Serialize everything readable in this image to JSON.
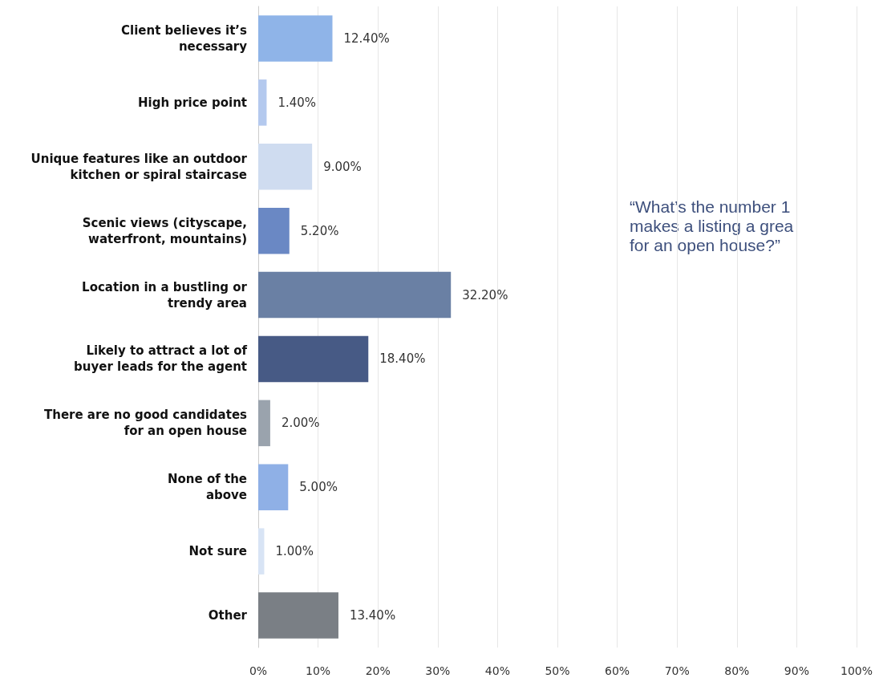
{
  "chart_data": {
    "type": "bar",
    "orientation": "horizontal",
    "categories": [
      "Client believes it’s\nnecessary",
      "High price point",
      "Unique features like an outdoor\nkitchen or spiral staircase",
      "Scenic views (cityscape,\nwaterfront, mountains)",
      "Location in a bustling or\ntrendy area",
      "Likely to attract a lot of\nbuyer leads for the agent",
      "There are no good candidates\nfor an open house",
      "None of the\nabove",
      "Not sure",
      "Other"
    ],
    "values": [
      12.4,
      1.4,
      9.0,
      5.2,
      32.2,
      18.4,
      2.0,
      5.0,
      1.0,
      13.4
    ],
    "value_labels": [
      "12.40%",
      "1.40%",
      "9.00%",
      "5.20%",
      "32.20%",
      "18.40%",
      "2.00%",
      "5.00%",
      "1.00%",
      "13.40%"
    ],
    "colors": [
      "#8fb4e8",
      "#b4c9ee",
      "#cfdcf0",
      "#6a88c4",
      "#6a80a4",
      "#475a85",
      "#9aa3ad",
      "#8fb0e6",
      "#d8e4f5",
      "#7a7f85"
    ],
    "xlim": [
      0,
      100
    ],
    "xticks": [
      {
        "value": 0,
        "label": "0%"
      },
      {
        "value": 10,
        "label": "10%"
      },
      {
        "value": 20,
        "label": "20%"
      },
      {
        "value": 30,
        "label": "30%"
      },
      {
        "value": 40,
        "label": "40%"
      },
      {
        "value": 50,
        "label": "50%"
      },
      {
        "value": 60,
        "label": "60%"
      },
      {
        "value": 70,
        "label": "70%"
      },
      {
        "value": 80,
        "label": "80%"
      },
      {
        "value": 90,
        "label": "90%"
      },
      {
        "value": 100,
        "label": "100%"
      }
    ],
    "grid": "x",
    "annotations": [
      "“What’s the number 1\nmakes a listing a grea\nfor an open house?”"
    ]
  }
}
